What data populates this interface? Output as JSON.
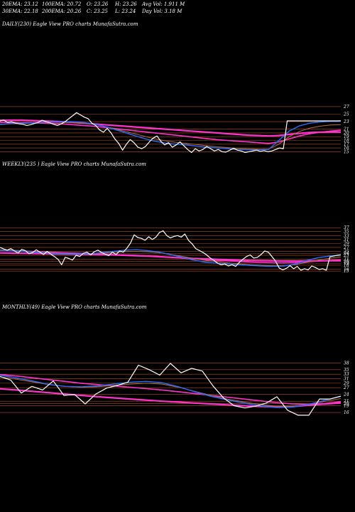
{
  "header": {
    "ema20": "20EMA: 23.12",
    "ema100": "100EMA: 20.72",
    "open": "O: 23.26",
    "high": "H: 23.26",
    "avgvol": "Avg Vol: 1.911  M",
    "ema30": "30EMA: 22.18",
    "ema200": "200EMA: 20.26",
    "close": "C: 23.25",
    "low": "L: 23.24",
    "dayvol": "Day Vol: 3.18  M"
  },
  "colors": {
    "background": "#000000",
    "price": "#ffffff",
    "ema_blue": "#2a6cff",
    "ema_pink": "#ff33cc",
    "ema_brown": "#b07040",
    "grid": "#b0502a"
  },
  "chart_data": [
    {
      "type": "line",
      "title": "DAILY(230) Eagle  View  PRO charts MunafaSutra.com",
      "yticks": [
        27,
        25,
        23,
        21,
        20,
        19,
        18,
        17,
        16,
        15
      ],
      "ylim": [
        14.5,
        28.5
      ],
      "series": [
        {
          "role": "price",
          "values": [
            23.2,
            23.4,
            22.8,
            23.0,
            22.6,
            22.4,
            22.3,
            22.0,
            22.2,
            22.5,
            22.8,
            23.4,
            23.0,
            22.7,
            22.3,
            22.0,
            22.4,
            23.0,
            23.8,
            24.6,
            25.4,
            24.8,
            24.2,
            23.8,
            22.6,
            22.0,
            20.8,
            20.2,
            21.2,
            20.0,
            18.4,
            17.2,
            15.4,
            17.0,
            18.2,
            17.4,
            16.2,
            15.8,
            16.4,
            17.6,
            18.6,
            19.2,
            17.8,
            16.8,
            17.4,
            16.2,
            16.8,
            17.6,
            16.6,
            15.6,
            14.8,
            15.8,
            15.2,
            15.6,
            16.4,
            15.8,
            15.2,
            15.6,
            15.0,
            14.9,
            15.4,
            15.9,
            15.4,
            15.2,
            14.8,
            15.0,
            15.2,
            15.4,
            15.1,
            15.3,
            15.0,
            15.2,
            15.6,
            16.0,
            15.8,
            23.2,
            23.2,
            23.2,
            23.2,
            23.2,
            23.2,
            23.2,
            23.2,
            23.2,
            23.2,
            23.2,
            23.2,
            23.2,
            23.2,
            23.25
          ]
        },
        {
          "role": "ema20",
          "values": [
            22.3,
            22.5,
            22.6,
            22.7,
            22.8,
            22.9,
            23.0,
            23.0,
            22.8,
            22.4,
            21.8,
            21.0,
            20.2,
            19.3,
            18.5,
            17.8,
            17.3,
            17.0,
            16.8,
            16.5,
            16.2,
            16.0,
            15.8,
            15.6,
            15.5,
            15.5,
            15.6,
            18.0,
            20.5,
            21.9,
            22.6,
            22.9,
            23.1,
            23.12
          ]
        },
        {
          "role": "ema30",
          "values": [
            22.2,
            22.4,
            22.5,
            22.6,
            22.7,
            22.8,
            22.8,
            22.8,
            22.6,
            22.3,
            21.8,
            21.2,
            20.5,
            19.8,
            19.1,
            18.4,
            17.9,
            17.5,
            17.2,
            16.9,
            16.6,
            16.3,
            16.1,
            15.9,
            15.8,
            15.7,
            15.7,
            17.0,
            19.0,
            20.4,
            21.3,
            21.8,
            22.1,
            22.18
          ]
        },
        {
          "role": "ema100",
          "values": [
            22.8,
            22.8,
            22.7,
            22.7,
            22.6,
            22.5,
            22.4,
            22.2,
            22.0,
            21.8,
            21.5,
            21.2,
            20.9,
            20.6,
            20.3,
            20.0,
            19.7,
            19.4,
            19.1,
            18.8,
            18.5,
            18.2,
            18.0,
            17.8,
            17.6,
            17.4,
            17.2,
            17.6,
            18.4,
            19.2,
            19.8,
            20.2,
            20.5,
            20.72
          ]
        },
        {
          "role": "ema200",
          "values": [
            23.4,
            23.4,
            23.4,
            23.3,
            23.2,
            23.1,
            23.0,
            22.8,
            22.6,
            22.4,
            22.2,
            22.0,
            21.8,
            21.6,
            21.4,
            21.2,
            21.0,
            20.8,
            20.6,
            20.4,
            20.2,
            20.0,
            19.8,
            19.6,
            19.4,
            19.3,
            19.2,
            19.3,
            19.6,
            19.9,
            20.1,
            20.2,
            20.25,
            20.26
          ]
        }
      ]
    },
    {
      "type": "line",
      "title": "WEEKLY(235                ) Eagle  View  PRO charts MunafaSutra.com",
      "yticks": [
        37,
        35,
        33,
        31,
        29,
        27,
        25,
        24,
        23,
        21,
        20,
        19,
        18,
        16,
        15
      ],
      "ylim": [
        14,
        38.5
      ],
      "series": [
        {
          "role": "price",
          "values": [
            27.0,
            26.2,
            25.6,
            26.4,
            25.2,
            24.2,
            26.0,
            25.4,
            23.8,
            24.4,
            25.8,
            24.6,
            23.4,
            25.0,
            23.6,
            22.4,
            21.0,
            18.2,
            22.0,
            21.4,
            20.6,
            23.0,
            22.4,
            24.0,
            24.6,
            23.2,
            24.8,
            25.6,
            24.4,
            23.6,
            22.8,
            24.6,
            23.4,
            25.2,
            24.6,
            26.6,
            29.2,
            33.4,
            32.0,
            31.6,
            30.6,
            32.4,
            31.0,
            32.2,
            34.6,
            35.4,
            33.0,
            31.8,
            32.6,
            33.0,
            32.2,
            33.8,
            30.6,
            28.8,
            26.4,
            25.4,
            24.4,
            23.2,
            21.6,
            20.4,
            19.0,
            18.2,
            18.6,
            17.6,
            18.2,
            17.4,
            19.4,
            21.0,
            22.4,
            23.2,
            21.6,
            22.0,
            23.4,
            25.2,
            24.6,
            22.4,
            20.0,
            16.6,
            15.6,
            16.4,
            17.8,
            16.2,
            17.4,
            15.4,
            16.2,
            15.6,
            17.6,
            16.8,
            15.8,
            16.2,
            15.4,
            22.2,
            22.6,
            23.0,
            23.25
          ]
        },
        {
          "role": "ema20",
          "values": [
            25.5,
            25.3,
            25.0,
            24.6,
            24.2,
            23.8,
            23.6,
            23.6,
            23.8,
            24.4,
            25.0,
            25.6,
            25.8,
            25.4,
            24.6,
            23.4,
            22.0,
            20.6,
            19.6,
            19.0,
            18.6,
            18.2,
            17.9,
            17.6,
            17.4,
            17.6,
            18.6,
            20.4,
            21.8,
            22.6,
            23.12
          ]
        },
        {
          "role": "ema30",
          "values": [
            25.8,
            25.6,
            25.3,
            24.9,
            24.5,
            24.1,
            23.8,
            23.7,
            23.8,
            24.1,
            24.5,
            24.9,
            25.0,
            24.8,
            24.3,
            23.5,
            22.5,
            21.4,
            20.5,
            19.8,
            19.2,
            18.7,
            18.3,
            18.0,
            17.7,
            17.7,
            18.3,
            19.4,
            20.6,
            21.5,
            22.18
          ]
        },
        {
          "role": "ema100",
          "values": [
            25.6,
            25.4,
            25.2,
            24.9,
            24.7,
            24.4,
            24.2,
            24.0,
            23.8,
            23.6,
            23.4,
            23.2,
            23.0,
            22.7,
            22.4,
            22.0,
            21.6,
            21.2,
            20.8,
            20.5,
            20.2,
            19.9,
            19.6,
            19.4,
            19.2,
            19.1,
            19.3,
            19.7,
            20.1,
            20.4,
            20.72
          ]
        },
        {
          "role": "ema200",
          "values": [
            24.2,
            24.1,
            24.0,
            23.9,
            23.8,
            23.7,
            23.6,
            23.5,
            23.4,
            23.3,
            23.2,
            23.0,
            22.8,
            22.6,
            22.3,
            22.0,
            21.7,
            21.4,
            21.2,
            21.0,
            20.8,
            20.6,
            20.4,
            20.3,
            20.2,
            20.1,
            20.1,
            20.15,
            20.2,
            20.23,
            20.26
          ]
        }
      ]
    },
    {
      "type": "line",
      "title": "MONTHLY(49) Eagle  View  PRO charts MunafaSutra.com",
      "yticks": [
        38,
        35,
        33,
        31,
        29,
        27,
        24,
        21,
        20,
        19,
        16
      ],
      "ylim": [
        13.5,
        40
      ],
      "series": [
        {
          "role": "price",
          "values": [
            32.0,
            30.4,
            24.6,
            27.6,
            26.0,
            30.0,
            23.6,
            24.0,
            19.8,
            24.2,
            26.8,
            28.0,
            29.4,
            37.0,
            35.0,
            32.6,
            37.8,
            33.6,
            35.6,
            34.4,
            27.8,
            22.4,
            19.0,
            18.0,
            18.8,
            20.2,
            23.0,
            17.0,
            14.8,
            14.8,
            22.0,
            22.0,
            23.25
          ]
        },
        {
          "role": "ema20",
          "values": [
            32.5,
            31.4,
            30.0,
            28.5,
            27.6,
            27.4,
            27.8,
            28.6,
            29.4,
            29.8,
            29.2,
            27.4,
            25.2,
            23.2,
            21.6,
            20.2,
            19.0,
            18.2,
            18.4,
            19.6,
            21.4,
            23.12
          ]
        },
        {
          "role": "ema30",
          "values": [
            31.8,
            30.8,
            29.6,
            28.4,
            27.6,
            27.2,
            27.4,
            28.0,
            28.6,
            29.0,
            28.6,
            27.2,
            25.4,
            23.6,
            22.0,
            20.7,
            19.6,
            18.8,
            18.8,
            19.6,
            20.9,
            22.18
          ]
        },
        {
          "role": "ema100",
          "values": [
            32.8,
            32.2,
            31.4,
            30.6,
            29.8,
            29.0,
            28.4,
            27.8,
            27.2,
            26.6,
            26.0,
            25.2,
            24.4,
            23.6,
            22.8,
            22.0,
            21.2,
            20.4,
            19.8,
            19.6,
            20.0,
            20.72
          ]
        },
        {
          "role": "ema200",
          "values": [
            26.5,
            26.0,
            25.4,
            24.8,
            24.2,
            23.6,
            23.0,
            22.5,
            22.0,
            21.5,
            21.0,
            20.6,
            20.2,
            19.8,
            19.4,
            19.0,
            18.7,
            18.5,
            18.6,
            19.2,
            19.8,
            20.26
          ]
        }
      ]
    }
  ]
}
